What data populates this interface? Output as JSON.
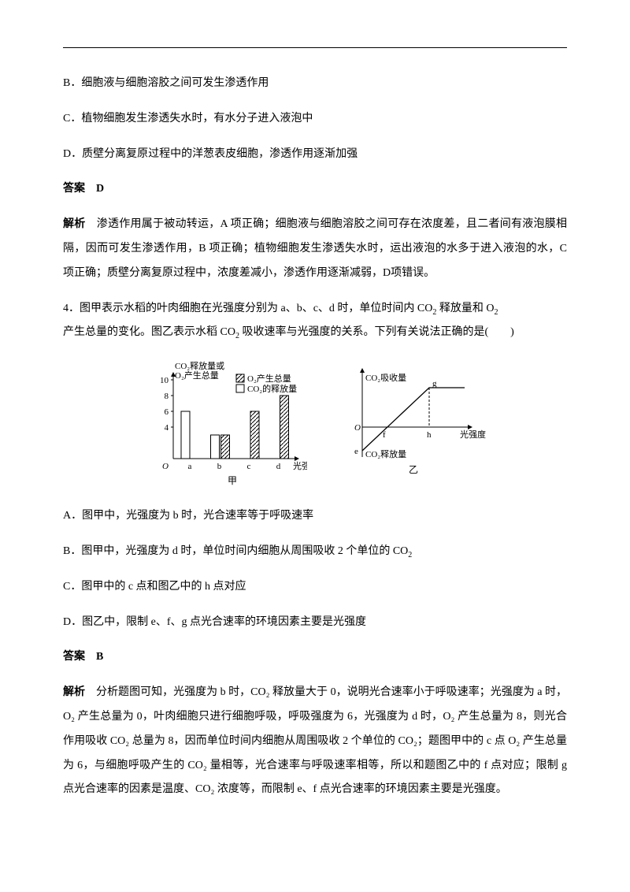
{
  "q3": {
    "optB": "B．细胞液与细胞溶胶之间可发生渗透作用",
    "optC": "C．植物细胞发生渗透失水时，有水分子进入液泡中",
    "optD": "D．质壁分离复原过程中的洋葱表皮细胞，渗透作用逐渐加强",
    "ansLabel": "答案　D",
    "expLabel": "解析",
    "expText": "　渗透作用属于被动转运，A 项正确；细胞液与细胞溶胶之间可存在浓度差，且二者间有液泡膜相隔，因而可发生渗透作用，B 项正确；植物细胞发生渗透失水时，运出液泡的水多于进入液泡的水，C 项正确；质壁分离复原过程中，浓度差减小，渗透作用逐渐减弱，D项错误。"
  },
  "q4": {
    "stem1": "4．图甲表示水稻的叶肉细胞在光强度分别为 a、b、c、d 时，单位时间内 CO",
    "stem1b": " 释放量和 O",
    "stem2": "产生总量的变化。图乙表示水稻 CO",
    "stem2b": " 吸收速率与光强度的关系。下列有关说法正确的是(　　)",
    "optA": "A．图甲中，光强度为 b 时，光合速率等于呼吸速率",
    "optB": "B．图甲中，光强度为 d 时，单位时间内细胞从周围吸收 2 个单位的 CO",
    "optC": "C．图甲中的 c 点和图乙中的 h 点对应",
    "optD": "D．图乙中，限制 e、f、g 点光合速率的环境因素主要是光强度",
    "ansLabel": "答案　B",
    "expLabel": "解析",
    "expText": "　分析题图可知，光强度为 b 时，CO₂ 释放量大于 0，说明光合速率小于呼吸速率；光强度为 a 时，O₂ 产生总量为 0，叶肉细胞只进行细胞呼吸，呼吸强度为 6，光强度为 d 时，O₂ 产生总量为 8，则光合作用吸收 CO₂ 总量为 8，因而单位时间内细胞从周围吸收 2 个单位的 CO₂；题图甲中的 c 点 O₂ 产生总量为 6，与细胞呼吸产生的 CO₂ 量相等，光合速率与呼吸速率相等，所以和题图乙中的 f 点对应；限制 g 点光合速率的因素是温度、CO₂ 浓度等，而限制 e、f 点光合速率的环境因素主要是光强度。"
  },
  "chart1": {
    "ylabel1": "CO₂释放量或",
    "ylabel2": "O₂产生总量",
    "legend1": "O₂产生总量",
    "legend2": "CO₂的释放量",
    "xlabel": "光强度",
    "caption": "甲",
    "yticks": [
      "10",
      "8",
      "6",
      "4"
    ],
    "ytick_vals": [
      10,
      8,
      6,
      4
    ],
    "cats": [
      "a",
      "b",
      "c",
      "d"
    ],
    "co2": [
      6,
      3,
      0,
      0
    ],
    "o2": [
      0,
      3,
      6,
      8
    ],
    "bar_colors": {
      "co2": "#ffffff",
      "o2": "#ffffff"
    },
    "hatch_color": "#000000",
    "axis_color": "#000000",
    "ymax": 10
  },
  "chart2": {
    "ylabel": "CO₂吸收量",
    "xlabel": "光强度",
    "belowlabel": "CO₂释放量",
    "caption": "乙",
    "pts": {
      "e": "e",
      "f": "f",
      "g": "g",
      "h": "h"
    },
    "line_color": "#000000",
    "axis_color": "#000000"
  }
}
